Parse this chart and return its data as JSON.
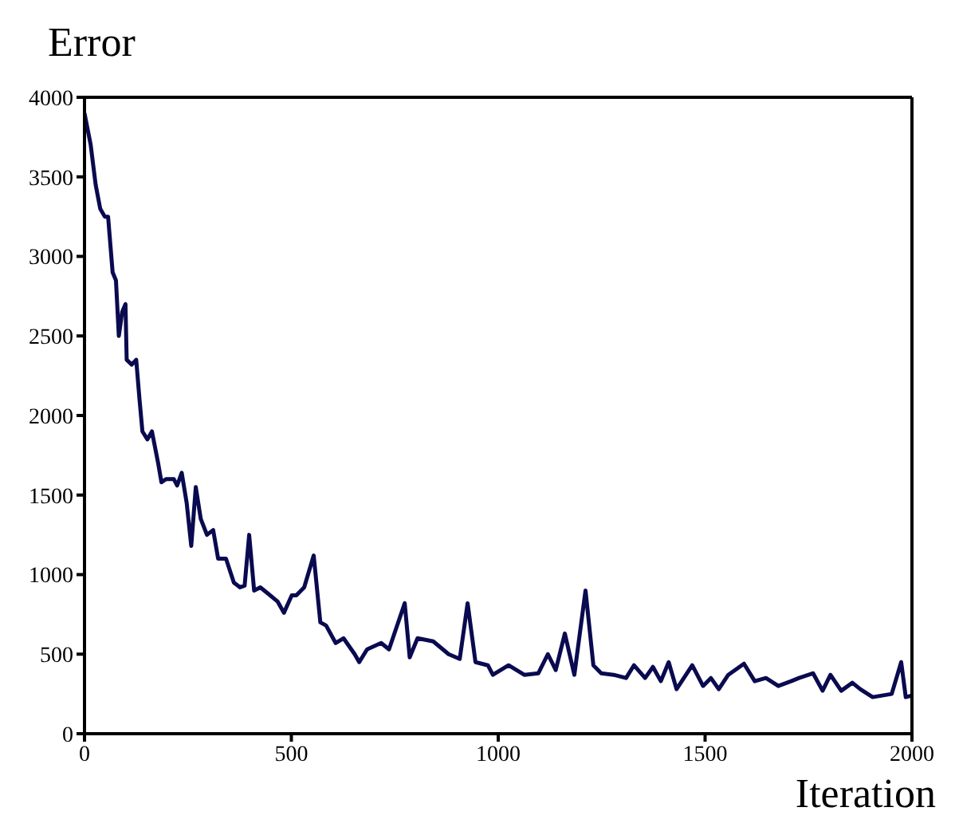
{
  "chart_data": {
    "type": "line",
    "xlabel": "Iteration",
    "ylabel": "Error",
    "x": [
      0,
      15,
      27,
      38,
      49,
      57,
      68,
      76,
      83,
      91,
      99,
      102,
      114,
      125,
      133,
      140,
      152,
      163,
      178,
      186,
      197,
      216,
      224,
      235,
      247,
      258,
      269,
      281,
      296,
      311,
      323,
      342,
      361,
      376,
      387,
      398,
      410,
      425,
      444,
      467,
      482,
      501,
      512,
      531,
      554,
      570,
      584,
      607,
      626,
      653,
      664,
      683,
      717,
      736,
      774,
      786,
      805,
      843,
      880,
      907,
      926,
      945,
      975,
      987,
      1025,
      1063,
      1097,
      1120,
      1139,
      1161,
      1184,
      1211,
      1230,
      1249,
      1279,
      1309,
      1328,
      1355,
      1374,
      1393,
      1412,
      1431,
      1469,
      1495,
      1514,
      1533,
      1556,
      1594,
      1620,
      1647,
      1677,
      1708,
      1727,
      1761,
      1784,
      1803,
      1829,
      1856,
      1875,
      1905,
      1951,
      1974,
      1985,
      2000
    ],
    "series": [
      {
        "color": "#0a0a50",
        "values": [
          3900,
          3700,
          3450,
          3300,
          3250,
          3250,
          2900,
          2850,
          2500,
          2650,
          2700,
          2350,
          2320,
          2350,
          2100,
          1900,
          1850,
          1900,
          1700,
          1580,
          1600,
          1600,
          1560,
          1640,
          1450,
          1180,
          1550,
          1350,
          1250,
          1280,
          1100,
          1100,
          950,
          920,
          930,
          1250,
          900,
          920,
          880,
          830,
          760,
          870,
          870,
          920,
          1120,
          700,
          680,
          570,
          600,
          500,
          450,
          530,
          570,
          530,
          820,
          480,
          600,
          580,
          500,
          470,
          820,
          450,
          430,
          370,
          430,
          370,
          380,
          500,
          400,
          630,
          370,
          900,
          430,
          380,
          370,
          350,
          430,
          350,
          420,
          330,
          450,
          280,
          430,
          300,
          350,
          280,
          370,
          440,
          330,
          350,
          300,
          330,
          350,
          380,
          270,
          370,
          270,
          320,
          280,
          230,
          250,
          450,
          230,
          240
        ]
      }
    ],
    "xlim": [
      0,
      2000
    ],
    "xticks": [
      0,
      500,
      1000,
      1500,
      2000
    ],
    "ylim": [
      0,
      4000
    ],
    "yticks": [
      0,
      500,
      1000,
      1500,
      2000,
      2500,
      3000,
      3500,
      4000
    ],
    "grid": false,
    "legend": false,
    "marker": "none",
    "line_style": "solid"
  }
}
